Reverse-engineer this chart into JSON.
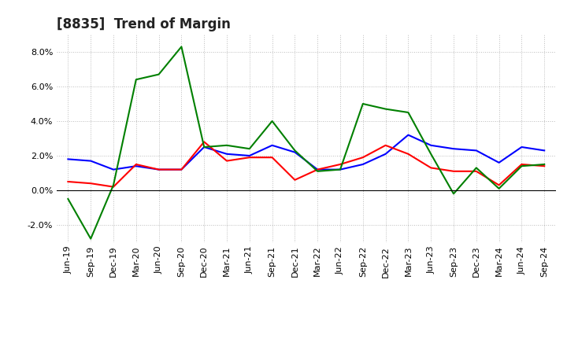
{
  "title": "[8835]  Trend of Margin",
  "x_labels": [
    "Jun-19",
    "Sep-19",
    "Dec-19",
    "Mar-20",
    "Jun-20",
    "Sep-20",
    "Dec-20",
    "Mar-21",
    "Jun-21",
    "Sep-21",
    "Dec-21",
    "Mar-22",
    "Jun-22",
    "Sep-22",
    "Dec-22",
    "Mar-23",
    "Jun-23",
    "Sep-23",
    "Dec-23",
    "Mar-24",
    "Jun-24",
    "Sep-24"
  ],
  "ordinary_income": [
    1.8,
    1.7,
    1.2,
    1.4,
    1.2,
    1.2,
    2.5,
    2.1,
    2.0,
    2.6,
    2.2,
    1.2,
    1.2,
    1.5,
    2.1,
    3.2,
    2.6,
    2.4,
    2.3,
    1.6,
    2.5,
    2.3
  ],
  "net_income": [
    0.5,
    0.4,
    0.2,
    1.5,
    1.2,
    1.2,
    2.8,
    1.7,
    1.9,
    1.9,
    0.6,
    1.2,
    1.5,
    1.9,
    2.6,
    2.1,
    1.3,
    1.1,
    1.1,
    0.3,
    1.5,
    1.4
  ],
  "operating_cashflow": [
    -0.5,
    -2.8,
    0.3,
    6.4,
    6.7,
    8.3,
    2.5,
    2.6,
    2.4,
    4.0,
    2.3,
    1.1,
    1.2,
    5.0,
    4.7,
    4.5,
    2.1,
    -0.2,
    1.3,
    0.1,
    1.4,
    1.5
  ],
  "ylim": [
    -3.0,
    9.0
  ],
  "yticks": [
    -2.0,
    0.0,
    2.0,
    4.0,
    6.0,
    8.0
  ],
  "line_colors": {
    "ordinary_income": "#0000FF",
    "net_income": "#FF0000",
    "operating_cashflow": "#008000"
  },
  "background_color": "#FFFFFF",
  "grid_color": "#AAAAAA",
  "title_fontsize": 12,
  "tick_fontsize": 8,
  "legend_fontsize": 9
}
